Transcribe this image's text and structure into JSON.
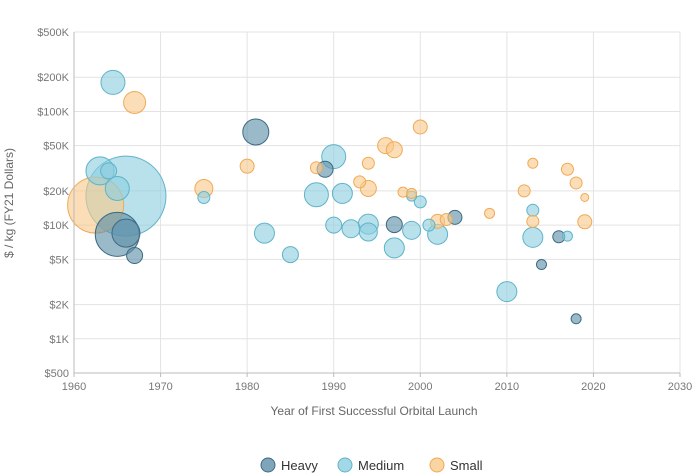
{
  "chart_data": {
    "type": "scatter",
    "subtype": "bubble",
    "xlabel": "Year of First Successful Orbital Launch",
    "ylabel": "$ / kg (FY21 Dollars)",
    "xlim": [
      1960,
      2030
    ],
    "ylim": [
      500,
      500000
    ],
    "y_scale": "log",
    "x_ticks": [
      1960,
      1970,
      1980,
      1990,
      2000,
      2010,
      2020,
      2030
    ],
    "x_tick_labels": [
      "1960",
      "1970",
      "1980",
      "1990",
      "2000",
      "2010",
      "2020",
      "2030"
    ],
    "y_ticks": [
      500,
      1000,
      2000,
      5000,
      10000,
      20000,
      50000,
      100000,
      200000,
      500000
    ],
    "y_tick_labels": [
      "$500",
      "$1K",
      "$2K",
      "$5K",
      "$10K",
      "$20K",
      "$50K",
      "$100K",
      "$200K",
      "$500K"
    ],
    "grid": true,
    "legend_position": "bottom-center",
    "series": [
      {
        "name": "Heavy",
        "fill": "#5e8fa8",
        "stroke": "#3d6a82",
        "points": [
          {
            "x": 1965,
            "y": 8300,
            "size": 22
          },
          {
            "x": 1966,
            "y": 8500,
            "size": 14
          },
          {
            "x": 1967,
            "y": 5400,
            "size": 8
          },
          {
            "x": 1981,
            "y": 66000,
            "size": 13
          },
          {
            "x": 1989,
            "y": 31000,
            "size": 8
          },
          {
            "x": 1997,
            "y": 10100,
            "size": 8
          },
          {
            "x": 2004,
            "y": 11700,
            "size": 7
          },
          {
            "x": 2014,
            "y": 4500,
            "size": 5
          },
          {
            "x": 2016,
            "y": 7900,
            "size": 6
          },
          {
            "x": 2018,
            "y": 1500,
            "size": 5
          }
        ]
      },
      {
        "name": "Medium",
        "fill": "#8ccfe0",
        "stroke": "#5fb3c9",
        "points": [
          {
            "x": 1964.5,
            "y": 180000,
            "size": 12
          },
          {
            "x": 1963,
            "y": 30000,
            "size": 14
          },
          {
            "x": 1964,
            "y": 30000,
            "size": 8
          },
          {
            "x": 1966,
            "y": 18000,
            "size": 40
          },
          {
            "x": 1965,
            "y": 21000,
            "size": 12
          },
          {
            "x": 1975,
            "y": 17500,
            "size": 6
          },
          {
            "x": 1982,
            "y": 8500,
            "size": 10
          },
          {
            "x": 1985,
            "y": 5500,
            "size": 8
          },
          {
            "x": 1988,
            "y": 18500,
            "size": 12
          },
          {
            "x": 1990,
            "y": 40000,
            "size": 12
          },
          {
            "x": 1990,
            "y": 10000,
            "size": 8
          },
          {
            "x": 1991,
            "y": 19000,
            "size": 10
          },
          {
            "x": 1992,
            "y": 9300,
            "size": 9
          },
          {
            "x": 1994,
            "y": 10200,
            "size": 10
          },
          {
            "x": 1994,
            "y": 8700,
            "size": 9
          },
          {
            "x": 1997,
            "y": 6300,
            "size": 10
          },
          {
            "x": 1999,
            "y": 9000,
            "size": 9
          },
          {
            "x": 1999,
            "y": 18000,
            "size": 5
          },
          {
            "x": 2000,
            "y": 16000,
            "size": 6
          },
          {
            "x": 2001,
            "y": 10000,
            "size": 6
          },
          {
            "x": 2002,
            "y": 8300,
            "size": 10
          },
          {
            "x": 2010,
            "y": 2600,
            "size": 10
          },
          {
            "x": 2013,
            "y": 13500,
            "size": 6
          },
          {
            "x": 2013,
            "y": 7800,
            "size": 10
          },
          {
            "x": 2017,
            "y": 8000,
            "size": 5
          }
        ]
      },
      {
        "name": "Small",
        "fill": "#f9c98a",
        "stroke": "#f0aa55",
        "points": [
          {
            "x": 1967,
            "y": 120000,
            "size": 11
          },
          {
            "x": 1962.5,
            "y": 15000,
            "size": 28
          },
          {
            "x": 1975,
            "y": 21000,
            "size": 9
          },
          {
            "x": 1980,
            "y": 33000,
            "size": 7
          },
          {
            "x": 1988,
            "y": 32000,
            "size": 6
          },
          {
            "x": 1993,
            "y": 24000,
            "size": 6
          },
          {
            "x": 1994,
            "y": 35000,
            "size": 6
          },
          {
            "x": 1994,
            "y": 21000,
            "size": 8
          },
          {
            "x": 1996,
            "y": 50000,
            "size": 8
          },
          {
            "x": 1997,
            "y": 46000,
            "size": 8
          },
          {
            "x": 1998,
            "y": 19500,
            "size": 5
          },
          {
            "x": 1999,
            "y": 19000,
            "size": 5
          },
          {
            "x": 2000,
            "y": 73000,
            "size": 7
          },
          {
            "x": 2002,
            "y": 10800,
            "size": 7
          },
          {
            "x": 2003,
            "y": 11200,
            "size": 6
          },
          {
            "x": 2008,
            "y": 12700,
            "size": 5
          },
          {
            "x": 2012,
            "y": 20000,
            "size": 6
          },
          {
            "x": 2013,
            "y": 35000,
            "size": 5
          },
          {
            "x": 2013,
            "y": 10800,
            "size": 6
          },
          {
            "x": 2017,
            "y": 31000,
            "size": 6
          },
          {
            "x": 2018,
            "y": 23500,
            "size": 6
          },
          {
            "x": 2019,
            "y": 17500,
            "size": 4
          },
          {
            "x": 2019,
            "y": 10700,
            "size": 7
          }
        ]
      }
    ]
  }
}
